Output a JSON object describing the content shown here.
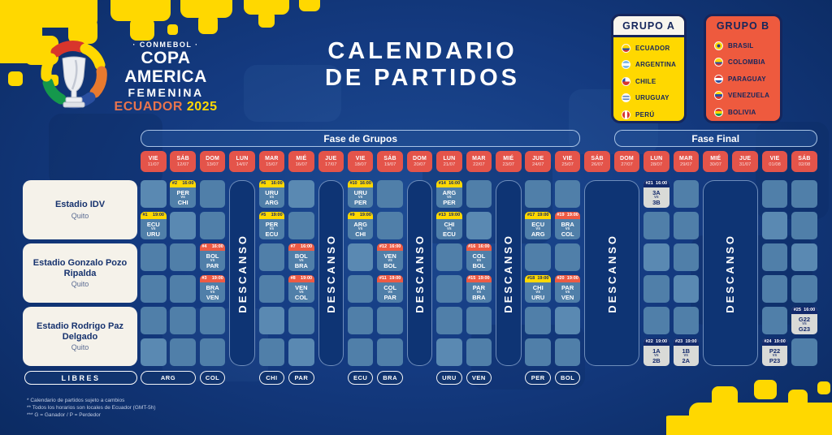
{
  "branding": {
    "conmebol": "· CONMEBOL ·",
    "title": "COPA AMERICA",
    "subtitle": "FEMENINA",
    "host": "ECUADOR",
    "year": "2025"
  },
  "page_title": {
    "line1": "CALENDARIO",
    "line2": "DE PARTIDOS"
  },
  "groups": [
    {
      "name": "GRUPO A",
      "color": "#ffd800",
      "teams": [
        {
          "name": "ECUADOR",
          "flag": "ecu"
        },
        {
          "name": "ARGENTINA",
          "flag": "arg"
        },
        {
          "name": "CHILE",
          "flag": "chi"
        },
        {
          "name": "URUGUAY",
          "flag": "uru"
        },
        {
          "name": "PERÚ",
          "flag": "per"
        }
      ]
    },
    {
      "name": "GRUPO B",
      "color": "#ee5a3e",
      "teams": [
        {
          "name": "BRASIL",
          "flag": "bra"
        },
        {
          "name": "COLOMBIA",
          "flag": "col"
        },
        {
          "name": "PARAGUAY",
          "flag": "par"
        },
        {
          "name": "VENEZUELA",
          "flag": "ven"
        },
        {
          "name": "BOLIVIA",
          "flag": "bol"
        }
      ]
    }
  ],
  "phases": [
    {
      "label": "Fase de Grupos",
      "from_col": 0,
      "to_col": 14
    },
    {
      "label": "Fase Final",
      "from_col": 16,
      "to_col": 22
    }
  ],
  "days": [
    {
      "dow": "VIE",
      "date": "11/07"
    },
    {
      "dow": "SÁB",
      "date": "12/07"
    },
    {
      "dow": "DOM",
      "date": "13/07"
    },
    {
      "dow": "LUN",
      "date": "14/07"
    },
    {
      "dow": "MAR",
      "date": "15/07"
    },
    {
      "dow": "MIÉ",
      "date": "16/07"
    },
    {
      "dow": "JUE",
      "date": "17/07"
    },
    {
      "dow": "VIE",
      "date": "18/07"
    },
    {
      "dow": "SÁB",
      "date": "19/07"
    },
    {
      "dow": "DOM",
      "date": "20/07"
    },
    {
      "dow": "LUN",
      "date": "21/07"
    },
    {
      "dow": "MAR",
      "date": "22/07"
    },
    {
      "dow": "MIÉ",
      "date": "23/07"
    },
    {
      "dow": "JUE",
      "date": "24/07"
    },
    {
      "dow": "VIE",
      "date": "25/07"
    },
    {
      "dow": "SÁB",
      "date": "26/07"
    },
    {
      "dow": "DOM",
      "date": "27/07"
    },
    {
      "dow": "LUN",
      "date": "28/07"
    },
    {
      "dow": "MAR",
      "date": "29/07"
    },
    {
      "dow": "MIÉ",
      "date": "30/07"
    },
    {
      "dow": "JUE",
      "date": "31/07"
    },
    {
      "dow": "VIE",
      "date": "01/08"
    },
    {
      "dow": "SÁB",
      "date": "02/08"
    }
  ],
  "stadiums": [
    {
      "name": "Estadio IDV",
      "city": "Quito"
    },
    {
      "name": "Estadio Gonzalo Pozo Ripalda",
      "city": "Quito"
    },
    {
      "name": "Estadio Rodrigo Paz Delgado",
      "city": "Quito"
    }
  ],
  "descanso_label": "DESCANSO",
  "descanso_columns": [
    {
      "col": 3,
      "span": 1
    },
    {
      "col": 6,
      "span": 1
    },
    {
      "col": 9,
      "span": 1
    },
    {
      "col": 12,
      "span": 1
    },
    {
      "col": 15,
      "span": 2
    },
    {
      "col": 19,
      "span": 2
    }
  ],
  "vs_label": "vs",
  "matches": [
    {
      "num": "#1",
      "time": "19:00",
      "home": "ECU",
      "away": "URU",
      "date": "11/07",
      "col": 0,
      "row": 1,
      "style": "a"
    },
    {
      "num": "#2",
      "time": "16:00",
      "home": "PER",
      "away": "CHI",
      "date": "12/07",
      "col": 1,
      "row": 0,
      "style": "a"
    },
    {
      "num": "#3",
      "time": "19:00",
      "home": "BRA",
      "away": "VEN",
      "date": "13/07",
      "col": 2,
      "row": 3,
      "style": "b"
    },
    {
      "num": "#4",
      "time": "16:00",
      "home": "BOL",
      "away": "PAR",
      "date": "13/07",
      "col": 2,
      "row": 2,
      "style": "b"
    },
    {
      "num": "#5",
      "time": "19:00",
      "home": "PER",
      "away": "ECU",
      "date": "15/07",
      "col": 4,
      "row": 1,
      "style": "a"
    },
    {
      "num": "#6",
      "time": "16:00",
      "home": "URU",
      "away": "ARG",
      "date": "15/07",
      "col": 4,
      "row": 0,
      "style": "a"
    },
    {
      "num": "#7",
      "time": "16:00",
      "home": "BOL",
      "away": "BRA",
      "date": "16/07",
      "col": 5,
      "row": 2,
      "style": "b"
    },
    {
      "num": "#8",
      "time": "19:00",
      "home": "VEN",
      "away": "COL",
      "date": "16/07",
      "col": 5,
      "row": 3,
      "style": "b"
    },
    {
      "num": "#9",
      "time": "19:00",
      "home": "ARG",
      "away": "CHI",
      "date": "18/07",
      "col": 7,
      "row": 1,
      "style": "a"
    },
    {
      "num": "#10",
      "time": "16:00",
      "home": "URU",
      "away": "PER",
      "date": "18/07",
      "col": 7,
      "row": 0,
      "style": "a"
    },
    {
      "num": "#11",
      "time": "19:00",
      "home": "COL",
      "away": "PAR",
      "date": "19/07",
      "col": 8,
      "row": 3,
      "style": "b"
    },
    {
      "num": "#12",
      "time": "16:00",
      "home": "VEN",
      "away": "BOL",
      "date": "19/07",
      "col": 8,
      "row": 2,
      "style": "b"
    },
    {
      "num": "#13",
      "time": "19:00",
      "home": "CHI",
      "away": "ECU",
      "date": "21/07",
      "col": 10,
      "row": 1,
      "style": "a"
    },
    {
      "num": "#14",
      "time": "16:00",
      "home": "ARG",
      "away": "PER",
      "date": "21/07",
      "col": 10,
      "row": 0,
      "style": "a"
    },
    {
      "num": "#15",
      "time": "19:00",
      "home": "PAR",
      "away": "BRA",
      "date": "22/07",
      "col": 11,
      "row": 3,
      "style": "b"
    },
    {
      "num": "#16",
      "time": "16:00",
      "home": "COL",
      "away": "BOL",
      "date": "22/07",
      "col": 11,
      "row": 2,
      "style": "b"
    },
    {
      "num": "#17",
      "time": "19:00",
      "home": "ECU",
      "away": "ARG",
      "date": "24/07",
      "col": 13,
      "row": 1,
      "style": "a"
    },
    {
      "num": "#18",
      "time": "19:00",
      "home": "CHI",
      "away": "URU",
      "date": "24/07",
      "col": 13,
      "row": 3,
      "style": "a"
    },
    {
      "num": "#19",
      "time": "19:00",
      "home": "BRA",
      "away": "COL",
      "date": "25/07",
      "col": 14,
      "row": 1,
      "style": "b"
    },
    {
      "num": "#20",
      "time": "19:00",
      "home": "PAR",
      "away": "VEN",
      "date": "25/07",
      "col": 14,
      "row": 3,
      "style": "b"
    },
    {
      "num": "#21",
      "time": "16:00",
      "home": "3A",
      "away": "3B",
      "date": "28/07",
      "col": 17,
      "row": 0,
      "style": "final"
    },
    {
      "num": "#22",
      "time": "19:00",
      "home": "1A",
      "away": "2B",
      "date": "28/07",
      "col": 17,
      "row": 5,
      "style": "final"
    },
    {
      "num": "#23",
      "time": "19:00",
      "home": "1B",
      "away": "2A",
      "date": "29/07",
      "col": 18,
      "row": 5,
      "style": "final"
    },
    {
      "num": "#24",
      "time": "19:00",
      "home": "P22",
      "away": "P23",
      "date": "01/08",
      "col": 21,
      "row": 5,
      "style": "final"
    },
    {
      "num": "#25",
      "time": "16:00",
      "home": "G22",
      "away": "G23",
      "date": "02/08",
      "col": 22,
      "row": 4,
      "style": "final"
    }
  ],
  "libres": {
    "label": "LIBRES",
    "chips": [
      {
        "team": "ARG",
        "col": 0,
        "span": 2
      },
      {
        "team": "COL",
        "col": 2,
        "span": 1
      },
      {
        "team": "CHI",
        "col": 4,
        "span": 1
      },
      {
        "team": "PAR",
        "col": 5,
        "span": 1
      },
      {
        "team": "ECU",
        "col": 7,
        "span": 1
      },
      {
        "team": "BRA",
        "col": 8,
        "span": 1
      },
      {
        "team": "URU",
        "col": 10,
        "span": 1
      },
      {
        "team": "VEN",
        "col": 11,
        "span": 1
      },
      {
        "team": "PER",
        "col": 13,
        "span": 1
      },
      {
        "team": "BOL",
        "col": 14,
        "span": 1
      }
    ]
  },
  "footnotes": [
    "* Calendario de partidos sujeto a cambios",
    "** Todos los horarios son locales de Ecuador (GMT-5h)",
    "*** G = Ganador / P = Perdedor"
  ],
  "colors": {
    "accent_yellow": "#ffd800",
    "accent_red_badge": "#ed5a44",
    "chip_red": "#e4544a",
    "navy": "#15265c",
    "cell_blue": "#507fa9",
    "group_b_orange": "#ee5a3e",
    "final_cell_gray": "#d9dad7"
  }
}
